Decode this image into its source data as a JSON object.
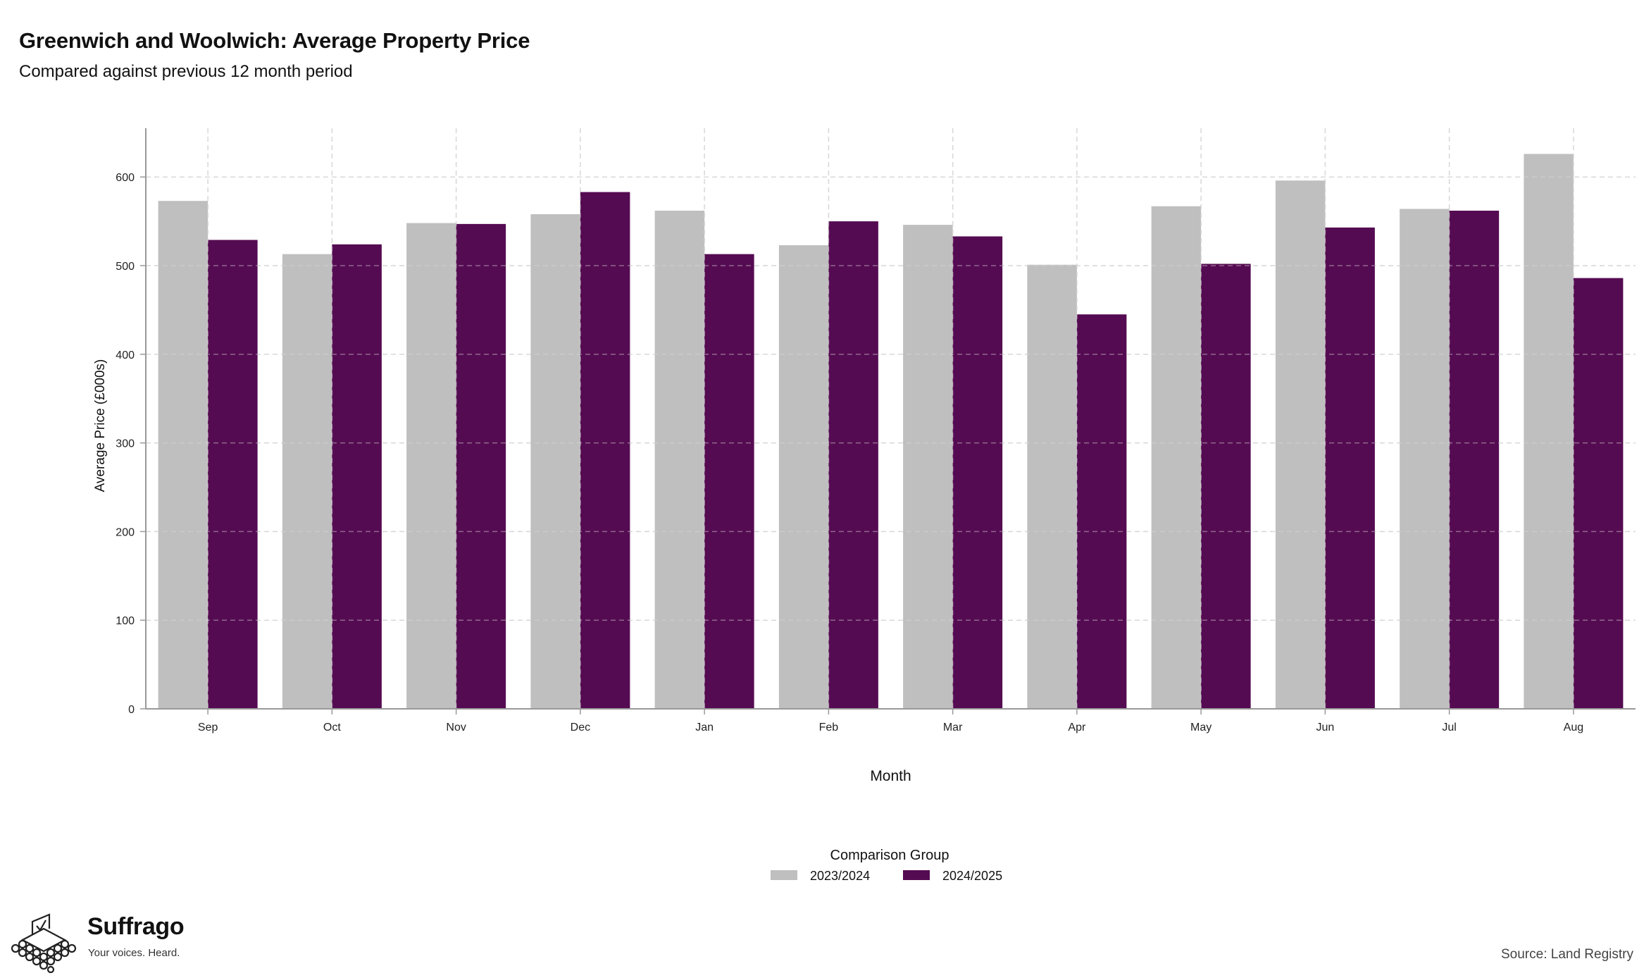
{
  "title": "Greenwich and Woolwich: Average Property Price",
  "subtitle": "Compared against previous 12 month period",
  "source": "Source: Land Registry",
  "brand": {
    "name": "Suffrago",
    "tagline": "Your voices. Heard."
  },
  "colors": {
    "series_2023_2024": "#bfbfbf",
    "series_2024_2025": "#550b52",
    "grid": "#d9d9d9",
    "axis": "#999999"
  },
  "chart_data": {
    "type": "bar",
    "xlabel": "Month",
    "ylabel": "Average Price (£000s)",
    "ylim": [
      0,
      655
    ],
    "yticks": [
      0,
      100,
      200,
      300,
      400,
      500,
      600
    ],
    "grid": true,
    "legend_title": "Comparison Group",
    "legend_position": "bottom",
    "categories": [
      "Sep",
      "Oct",
      "Nov",
      "Dec",
      "Jan",
      "Feb",
      "Mar",
      "Apr",
      "May",
      "Jun",
      "Jul",
      "Aug"
    ],
    "series": [
      {
        "name": "2023/2024",
        "color": "#bfbfbf",
        "values": [
          573,
          513,
          548,
          558,
          562,
          523,
          546,
          501,
          567,
          596,
          564,
          626
        ]
      },
      {
        "name": "2024/2025",
        "color": "#550b52",
        "values": [
          529,
          524,
          547,
          583,
          513,
          550,
          533,
          445,
          502,
          543,
          562,
          486
        ]
      }
    ]
  }
}
